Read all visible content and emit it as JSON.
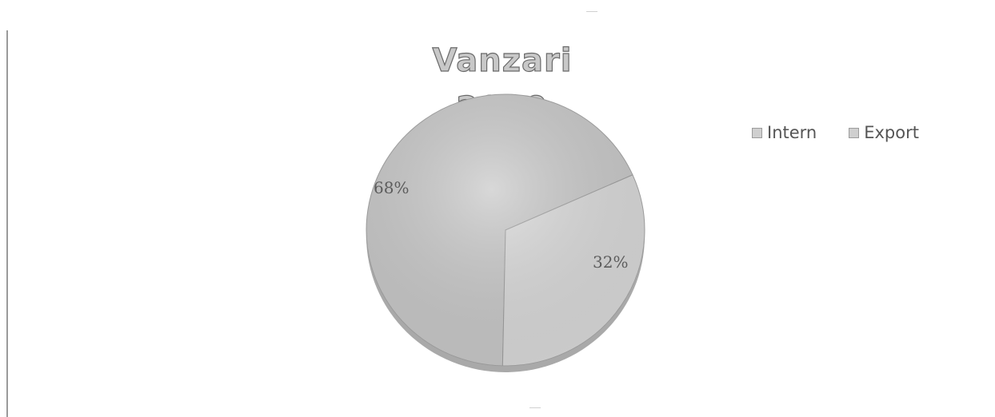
{
  "chart_data": {
    "type": "pie",
    "title": "Vanzari 2019",
    "slices": [
      {
        "name": "Intern",
        "value": 68,
        "label": "68%",
        "color": "#cbcbcb"
      },
      {
        "name": "Export",
        "value": 32,
        "label": "32%",
        "color": "#dcdcdc"
      }
    ],
    "legend_position": "top-right",
    "grid": false
  }
}
